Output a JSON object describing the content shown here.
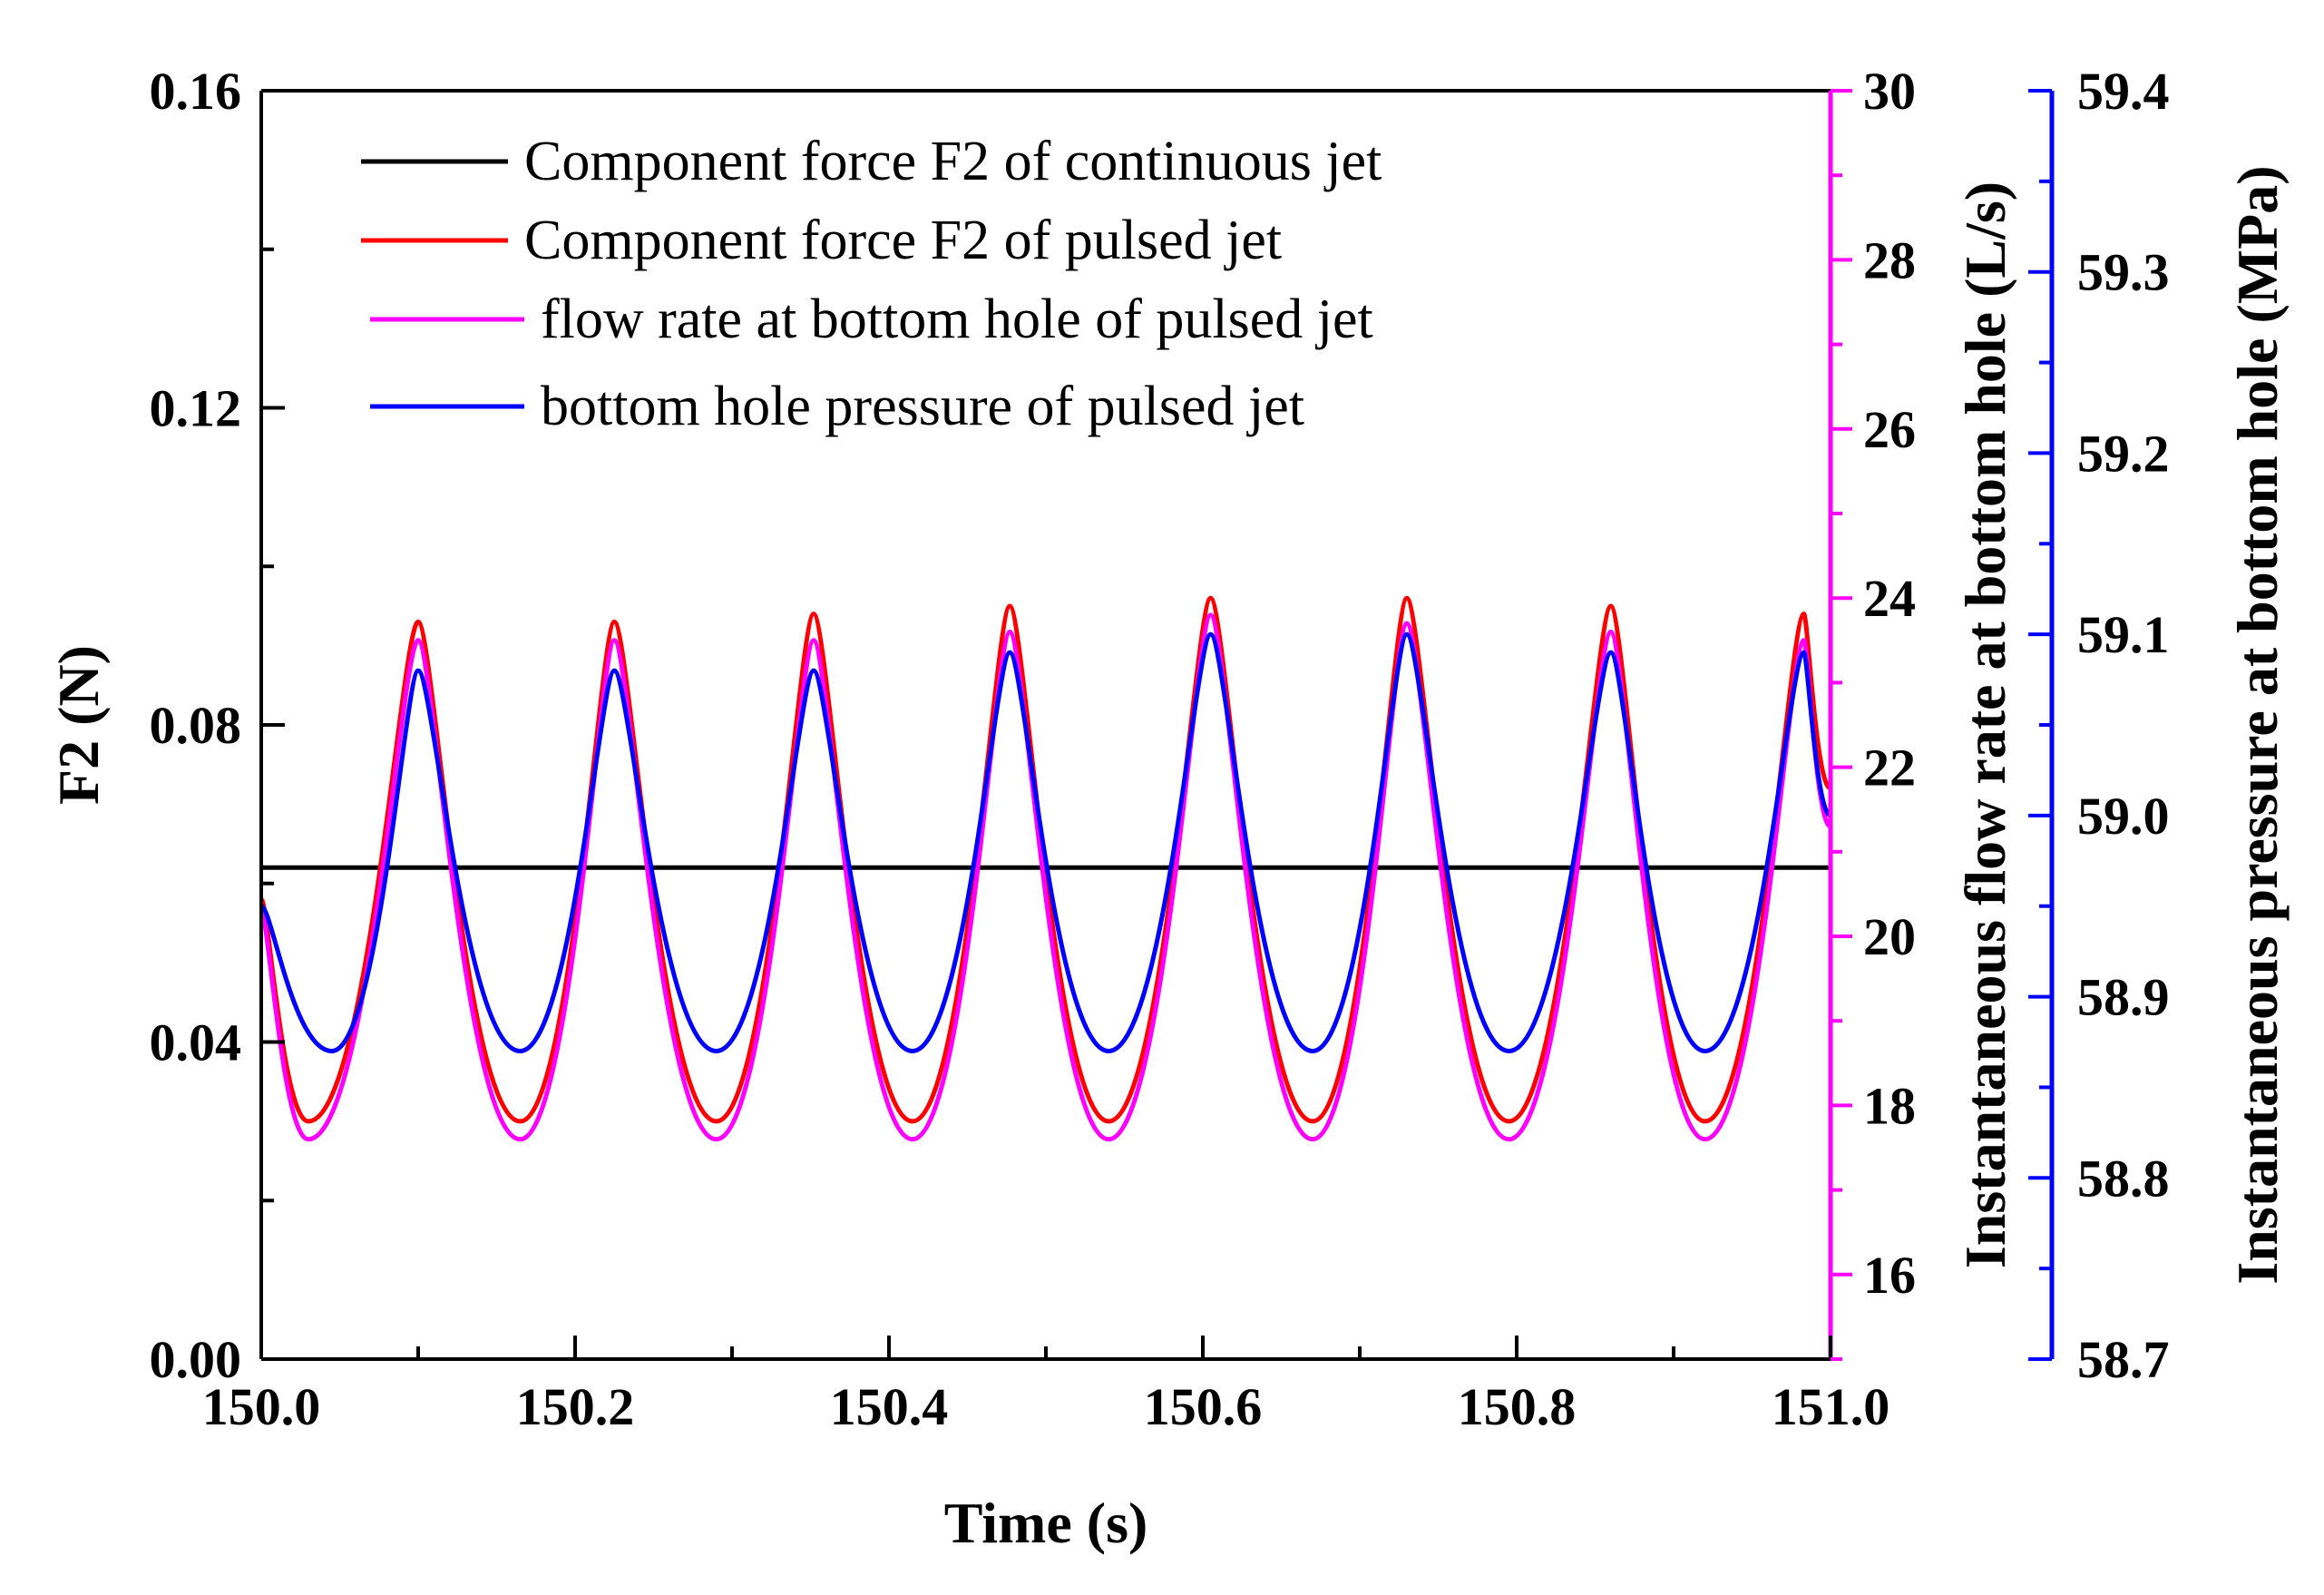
{
  "chart_data": {
    "type": "line",
    "title": "",
    "xlabel": "Time (s)",
    "ylabel": "F2 (N)",
    "y2label": "Instantaneous flow rate at bottom hole (L/s)",
    "y3label": "Instantaneous pressure at bottom hole (MPa)",
    "xlim": [
      150.0,
      151.0
    ],
    "ylim": [
      0.0,
      0.16
    ],
    "y2lim": [
      15,
      30
    ],
    "y3lim": [
      58.7,
      59.4
    ],
    "x_ticks": [
      "150.0",
      "150.2",
      "150.4",
      "150.6",
      "150.8",
      "151.0"
    ],
    "y_ticks": [
      "0.00",
      "0.04",
      "0.08",
      "0.12",
      "0.16"
    ],
    "y2_ticks": [
      "16",
      "18",
      "20",
      "22",
      "24",
      "26",
      "28",
      "30"
    ],
    "y3_ticks": [
      "58.7",
      "58.8",
      "58.9",
      "59.0",
      "59.1",
      "59.2",
      "59.3",
      "59.4"
    ],
    "grid": false,
    "legend_position": "top-left",
    "colors": {
      "axis_left": "#000000",
      "axis_flow": "#ff00ff",
      "axis_pressure": "#0000ff"
    },
    "series": [
      {
        "name": "Component force F2 of continuous jet",
        "color": "#000000",
        "axis": "left",
        "x": [
          150.0,
          151.0
        ],
        "y": [
          0.062,
          0.062
        ]
      },
      {
        "name": "Component force F2 of pulsed jet",
        "color": "#ff0000",
        "axis": "left",
        "x": [
          150.0,
          150.03,
          150.1,
          150.165,
          150.225,
          150.29,
          150.352,
          150.415,
          150.477,
          150.54,
          150.605,
          150.67,
          150.73,
          150.795,
          150.86,
          150.92,
          150.983,
          151.0
        ],
        "y": [
          0.058,
          0.03,
          0.093,
          0.03,
          0.093,
          0.03,
          0.094,
          0.03,
          0.095,
          0.03,
          0.096,
          0.03,
          0.096,
          0.03,
          0.095,
          0.03,
          0.094,
          0.072
        ]
      },
      {
        "name": "flow rate at bottom hole of pulsed jet",
        "color": "#ff00ff",
        "axis": "flow",
        "x": [
          150.0,
          150.03,
          150.1,
          150.165,
          150.225,
          150.29,
          150.352,
          150.415,
          150.477,
          150.54,
          150.605,
          150.67,
          150.73,
          150.795,
          150.86,
          150.92,
          150.983,
          151.0
        ],
        "y": [
          20.3,
          17.6,
          23.5,
          17.6,
          23.5,
          17.6,
          23.5,
          17.6,
          23.6,
          17.6,
          23.8,
          17.6,
          23.7,
          17.6,
          23.6,
          17.6,
          23.5,
          21.3
        ]
      },
      {
        "name": "bottom hole pressure of pulsed jet",
        "color": "#0000ff",
        "axis": "pressure",
        "x": [
          150.0,
          150.045,
          150.1,
          150.165,
          150.225,
          150.29,
          150.352,
          150.415,
          150.477,
          150.54,
          150.605,
          150.67,
          150.73,
          150.795,
          150.86,
          150.92,
          150.983,
          151.0
        ],
        "y": [
          58.95,
          58.87,
          59.08,
          58.87,
          59.08,
          58.87,
          59.08,
          58.87,
          59.09,
          58.87,
          59.1,
          58.87,
          59.1,
          58.87,
          59.09,
          58.87,
          59.09,
          59.0
        ]
      }
    ]
  }
}
